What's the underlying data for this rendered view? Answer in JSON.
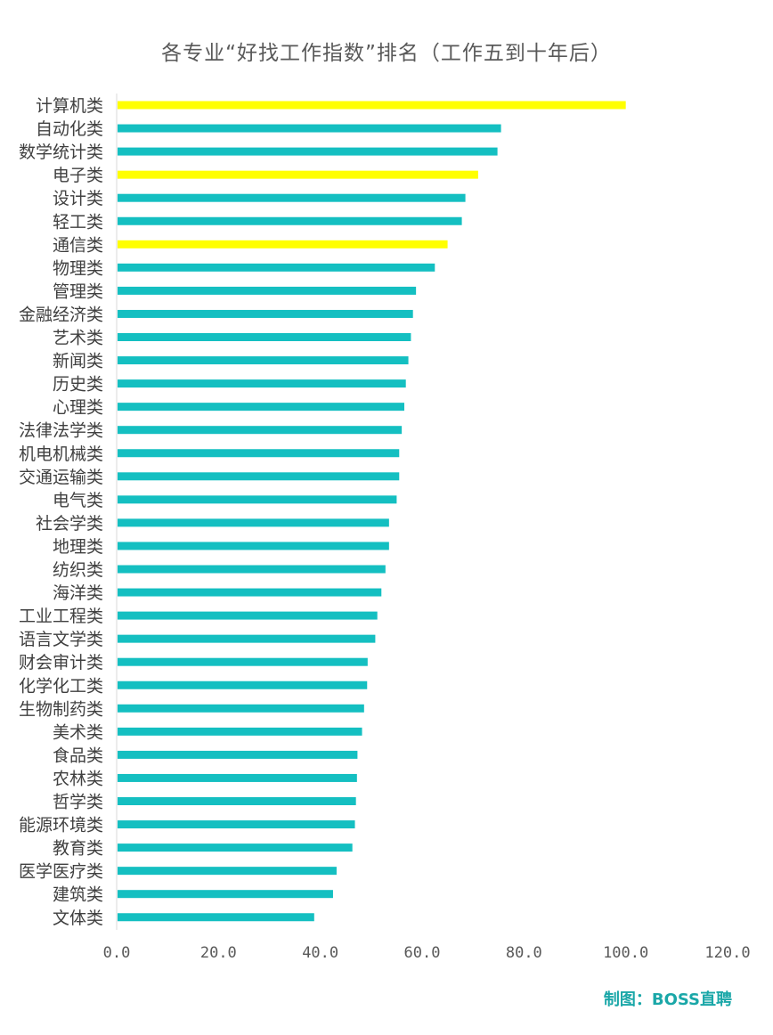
{
  "chart_data": {
    "type": "bar",
    "orientation": "horizontal",
    "title": "各专业“好找工作指数”排名（工作五到十年后）",
    "xlim": [
      0,
      120
    ],
    "x_ticks": [
      "0.0",
      "20.0",
      "40.0",
      "60.0",
      "80.0",
      "100.0",
      "120.0"
    ],
    "grid": false,
    "legend": "none",
    "categories": [
      "计算机类",
      "自动化类",
      "数学统计类",
      "电子类",
      "设计类",
      "轻工类",
      "通信类",
      "物理类",
      "管理类",
      "金融经济类",
      "艺术类",
      "新闻类",
      "历史类",
      "心理类",
      "法律法学类",
      "机电机械类",
      "交通运输类",
      "电气类",
      "社会学类",
      "地理类",
      "纺织类",
      "海洋类",
      "工业工程类",
      "语言文学类",
      "财会审计类",
      "化学化工类",
      "生物制药类",
      "美术类",
      "食品类",
      "农林类",
      "哲学类",
      "能源环境类",
      "教育类",
      "医学医疗类",
      "建筑类",
      "文体类"
    ],
    "values": [
      100.0,
      75.5,
      74.8,
      71.0,
      68.5,
      67.8,
      65.0,
      62.5,
      58.8,
      58.2,
      57.8,
      57.3,
      56.8,
      56.5,
      56.0,
      55.5,
      55.5,
      55.0,
      53.5,
      53.5,
      52.8,
      52.0,
      51.2,
      50.8,
      49.3,
      49.2,
      48.6,
      48.2,
      47.3,
      47.2,
      47.0,
      46.8,
      46.3,
      43.2,
      42.5,
      38.8
    ],
    "highlighted": [
      "计算机类",
      "电子类",
      "通信类"
    ],
    "colors": {
      "bar": "#14bfc1",
      "highlight": "#ffff00",
      "axis": "#d9d9d9"
    }
  },
  "credit": "制图：BOSS直聘"
}
